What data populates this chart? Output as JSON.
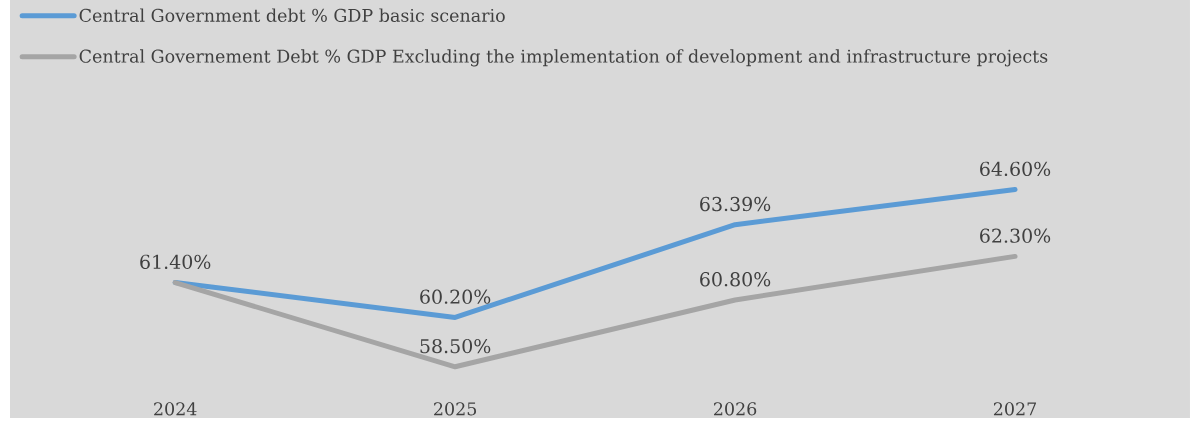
{
  "chart_data": {
    "type": "line",
    "categories": [
      "2024",
      "2025",
      "2026",
      "2027"
    ],
    "series": [
      {
        "name": "Central Government debt % GDP basic scenario",
        "color": "#5b9bd5",
        "values": [
          61.4,
          60.2,
          63.39,
          64.6
        ],
        "value_labels": [
          "61.40%",
          "60.20%",
          "63.39%",
          "64.60%"
        ]
      },
      {
        "name": "Central Governement Debt % GDP Excluding the implementation of development and infrastructure projects",
        "color": "#a5a5a5",
        "values": [
          61.4,
          58.5,
          60.8,
          62.3
        ],
        "value_labels": [
          null,
          "58.50%",
          "60.80%",
          "62.30%"
        ]
      }
    ],
    "legend": "top left"
  }
}
